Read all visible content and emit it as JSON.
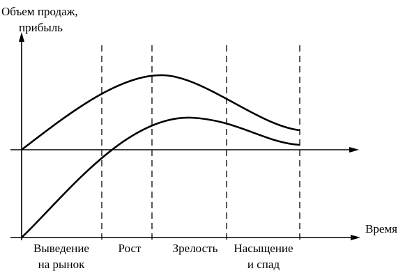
{
  "axis_labels": {
    "y": [
      "Объем продаж,",
      "прибыль"
    ],
    "x": "Время"
  },
  "stages": [
    [
      "Выведение",
      "на рынок"
    ],
    [
      "Рост"
    ],
    [
      "Зрелость"
    ],
    [
      "Насыщение",
      "и спад"
    ]
  ]
}
